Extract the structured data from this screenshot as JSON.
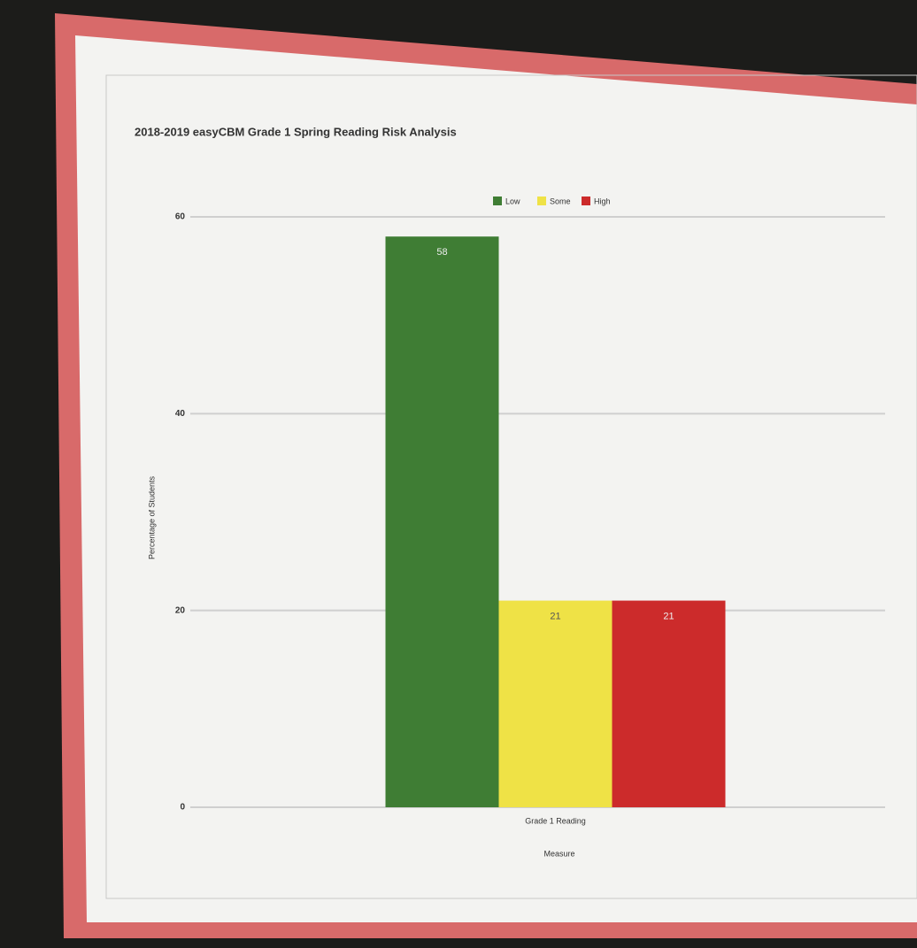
{
  "chart_data": {
    "type": "bar",
    "title": "2018-2019 easyCBM Grade 1 Spring Reading Risk Analysis",
    "y_label": "Percentage of Students",
    "x_label": "Measure",
    "categories": [
      "Grade 1 Reading"
    ],
    "series": [
      {
        "name": "Low",
        "color": "#3f7d34",
        "values": [
          58
        ]
      },
      {
        "name": "Some",
        "color": "#efe246",
        "values": [
          21
        ]
      },
      {
        "name": "High",
        "color": "#cc2b2b",
        "values": [
          21
        ]
      }
    ],
    "ylim": [
      0,
      60
    ],
    "yticks": [
      0,
      20,
      40,
      60
    ],
    "grid": true,
    "legend": "top"
  }
}
